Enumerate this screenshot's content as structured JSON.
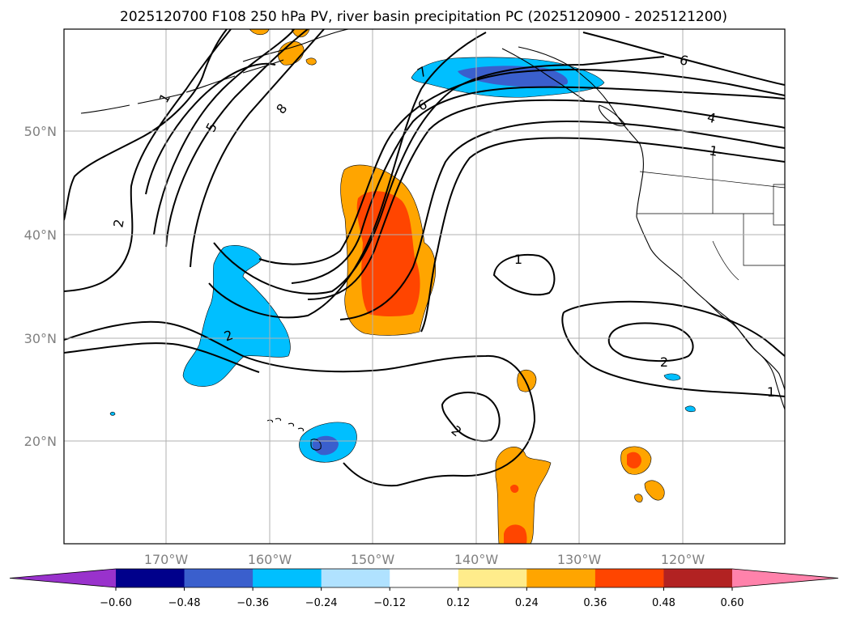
{
  "title": "2025120700 F108 250 hPa PV, river basin precipitation PC (2025120900 - 2025121200)",
  "map": {
    "lat_labels": [
      "50°N",
      "40°N",
      "30°N",
      "20°N"
    ],
    "lon_labels": [
      "170°W",
      "160°W",
      "150°W",
      "140°W",
      "130°W",
      "120°W"
    ],
    "gridlines": true,
    "pv_contour_labels": [
      "1",
      "2",
      "5",
      "8",
      "7",
      "6",
      "4",
      "6",
      "1",
      "1",
      "2",
      "2",
      "2",
      "1"
    ]
  },
  "colorbar": {
    "ticks": [
      "−0.60",
      "−0.48",
      "−0.36",
      "−0.24",
      "−0.12",
      "0.12",
      "0.24",
      "0.36",
      "0.48",
      "0.60"
    ],
    "colors": [
      "#9932CC",
      "#00008B",
      "#3A5FCD",
      "#00BFFF",
      "#B0E2FF",
      "#FFFFFF",
      "#FFEC8B",
      "#FFA500",
      "#FF4500",
      "#B22222",
      "#FF82AB"
    ],
    "extend": "both"
  },
  "chart_data": {
    "type": "contour-map",
    "title": "2025120700 F108 250 hPa PV, river basin precipitation PC (2025120900 - 2025121200)",
    "lon_range": [
      -180,
      -110
    ],
    "lat_range": [
      10,
      60
    ],
    "shading_levels": [
      -0.6,
      -0.48,
      -0.36,
      -0.24,
      -0.12,
      0.12,
      0.24,
      0.36,
      0.48,
      0.6
    ],
    "shading_colors": [
      "#9932CC",
      "#00008B",
      "#3A5FCD",
      "#00BFFF",
      "#B0E2FF",
      "#FFFFFF",
      "#FFEC8B",
      "#FFA500",
      "#FF4500",
      "#B22222",
      "#FF82AB"
    ],
    "contour_variable": "250 hPa PV",
    "contour_labels": [
      "1",
      "2",
      "5",
      "8",
      "7",
      "6",
      "4",
      "6",
      "1",
      "1",
      "2",
      "2",
      "2",
      "1"
    ]
  }
}
